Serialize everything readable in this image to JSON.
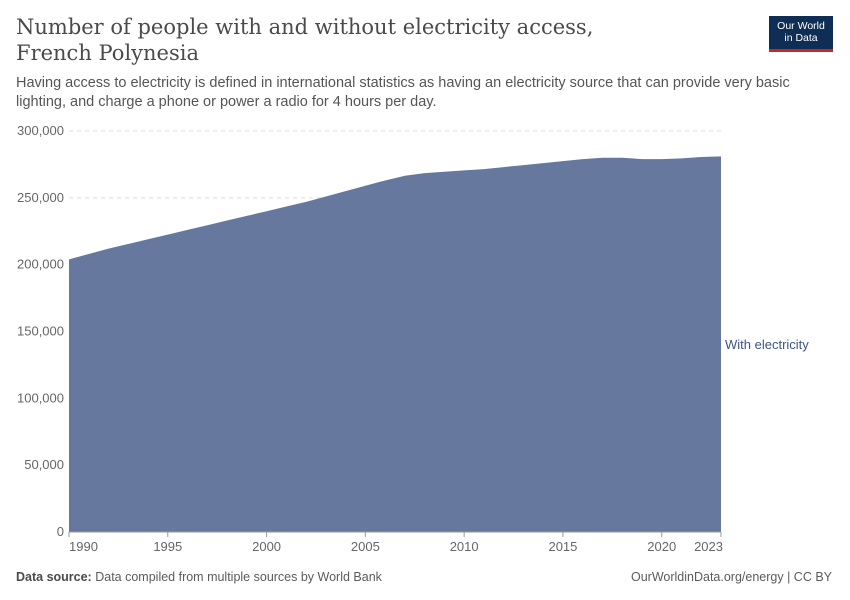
{
  "header": {
    "title": "Number of people with and without electricity access, French Polynesia",
    "subtitle": "Having access to electricity is defined in international statistics as having an electricity source that can provide very basic lighting, and charge a phone or power a radio for 4 hours per day.",
    "logo_line1": "Our World",
    "logo_line2": "in Data"
  },
  "footer": {
    "source_label": "Data source:",
    "source_text": "Data compiled from multiple sources by World Bank",
    "credit": "OurWorldinData.org/energy | CC BY"
  },
  "colors": {
    "area": "#66789e",
    "label": "#3d5585",
    "logo_bg": "#0f2e56",
    "logo_accent": "#ce261e"
  },
  "chart_data": {
    "type": "area",
    "title": "Number of people with and without electricity access, French Polynesia",
    "x": [
      1990,
      1991,
      1992,
      1993,
      1994,
      1995,
      1996,
      1997,
      1998,
      1999,
      2000,
      2001,
      2002,
      2003,
      2004,
      2005,
      2006,
      2007,
      2008,
      2009,
      2010,
      2011,
      2012,
      2013,
      2014,
      2015,
      2016,
      2017,
      2018,
      2019,
      2020,
      2021,
      2022,
      2023
    ],
    "series": [
      {
        "name": "With electricity",
        "values": [
          204000,
          208000,
          212000,
          215500,
          219000,
          222500,
          226000,
          229500,
          233000,
          236500,
          240000,
          243500,
          247000,
          251000,
          255000,
          259000,
          263000,
          266500,
          268500,
          269500,
          270500,
          271500,
          273000,
          274500,
          276000,
          277500,
          279000,
          280000,
          280000,
          279000,
          279000,
          279500,
          280500,
          281000
        ]
      }
    ],
    "ylim": [
      0,
      300000
    ],
    "y_ticks": [
      0,
      50000,
      100000,
      150000,
      200000,
      250000,
      300000
    ],
    "y_tick_labels": [
      "0",
      "50,000",
      "100,000",
      "150,000",
      "200,000",
      "250,000",
      "300,000"
    ],
    "x_ticks": [
      1990,
      1995,
      2000,
      2005,
      2010,
      2015,
      2020,
      2023
    ],
    "x_tick_labels": [
      "1990",
      "1995",
      "2000",
      "2005",
      "2010",
      "2015",
      "2020",
      "2023"
    ],
    "grid": true,
    "legend": "right, inline label"
  }
}
